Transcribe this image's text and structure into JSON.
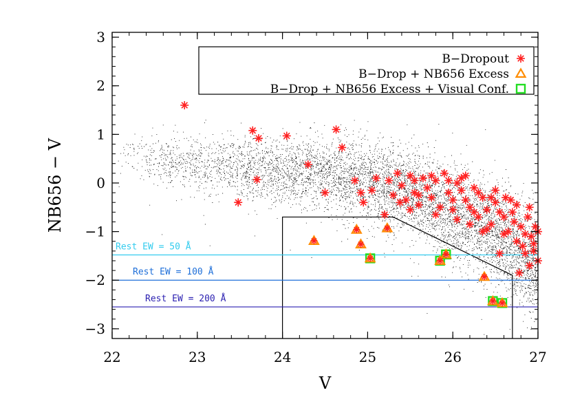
{
  "chart_data": {
    "type": "scatter",
    "xlabel": "V",
    "ylabel": "NB656 − V",
    "xlim": [
      22,
      27
    ],
    "ylim": [
      -3.2,
      3.1
    ],
    "x_ticks": [
      22,
      23,
      24,
      25,
      26,
      27
    ],
    "x_tick_labels": [
      "22",
      "23",
      "24",
      "25",
      "26",
      "27"
    ],
    "y_ticks": [
      -3,
      -2,
      -1,
      0,
      1,
      2,
      3
    ],
    "y_tick_labels": [
      "−3",
      "−2",
      "−1",
      "0",
      "1",
      "2",
      "3"
    ],
    "grid": false,
    "legend_position": "top-right",
    "legend": [
      {
        "label": "B−Dropout",
        "marker": "asterisk",
        "color": "#ff2020"
      },
      {
        "label": "B−Drop + NB656 Excess",
        "marker": "triangle",
        "color": "#ff8c00"
      },
      {
        "label": "B−Drop + NB656 Excess + Visual Conf.",
        "marker": "square",
        "color": "#22dd22"
      }
    ],
    "reference_lines": [
      {
        "label": "Rest EW = 50 Å",
        "y": -1.48,
        "color": "#33ccee"
      },
      {
        "label": "Rest EW = 100 Å",
        "y": -2.0,
        "color": "#1e6fd9"
      },
      {
        "label": "Rest EW = 200 Å",
        "y": -2.55,
        "color": "#2a1fb0"
      }
    ],
    "selection_region": [
      [
        24.0,
        -3.2
      ],
      [
        24.0,
        -0.7
      ],
      [
        25.3,
        -0.7
      ],
      [
        26.7,
        -1.9
      ],
      [
        26.7,
        -3.2
      ]
    ],
    "background_points": {
      "color": "#000000",
      "description_shown": false
    },
    "series": [
      {
        "name": "B−Dropout",
        "points": [
          [
            22.85,
            1.6
          ],
          [
            23.65,
            1.08
          ],
          [
            23.72,
            0.92
          ],
          [
            24.05,
            0.97
          ],
          [
            24.63,
            1.1
          ],
          [
            24.7,
            0.73
          ],
          [
            24.3,
            0.38
          ],
          [
            23.7,
            0.07
          ],
          [
            23.48,
            -0.4
          ],
          [
            24.5,
            -0.2
          ],
          [
            24.85,
            0.05
          ],
          [
            24.92,
            -0.2
          ],
          [
            24.95,
            -0.4
          ],
          [
            25.05,
            -0.15
          ],
          [
            25.1,
            0.1
          ],
          [
            25.2,
            -0.65
          ],
          [
            25.25,
            0.05
          ],
          [
            25.3,
            -0.25
          ],
          [
            25.35,
            0.2
          ],
          [
            25.4,
            -0.05
          ],
          [
            25.45,
            -0.35
          ],
          [
            25.5,
            0.15
          ],
          [
            25.55,
            -0.2
          ],
          [
            25.6,
            -0.45
          ],
          [
            25.65,
            0.1
          ],
          [
            25.7,
            -0.1
          ],
          [
            25.75,
            -0.3
          ],
          [
            25.8,
            0.05
          ],
          [
            25.85,
            -0.5
          ],
          [
            25.9,
            0.2
          ],
          [
            25.95,
            -0.2
          ],
          [
            26.0,
            -0.35
          ],
          [
            26.05,
            0.0
          ],
          [
            26.1,
            -0.15
          ],
          [
            26.15,
            0.15
          ],
          [
            26.2,
            -0.5
          ],
          [
            26.25,
            -0.1
          ],
          [
            26.3,
            -0.7
          ],
          [
            26.35,
            -0.3
          ],
          [
            26.4,
            -0.55
          ],
          [
            26.45,
            -0.85
          ],
          [
            26.5,
            -0.4
          ],
          [
            26.55,
            -1.45
          ],
          [
            26.6,
            -0.7
          ],
          [
            26.65,
            -1.0
          ],
          [
            26.7,
            -0.6
          ],
          [
            26.75,
            -1.2
          ],
          [
            26.8,
            -0.9
          ],
          [
            26.85,
            -1.45
          ],
          [
            26.88,
            -0.7
          ],
          [
            26.9,
            -1.7
          ],
          [
            26.92,
            -1.1
          ],
          [
            26.95,
            -1.4
          ],
          [
            26.97,
            -0.9
          ],
          [
            27.0,
            -1.6
          ],
          [
            26.78,
            -1.85
          ],
          [
            26.82,
            -1.3
          ],
          [
            26.6,
            -1.05
          ],
          [
            26.4,
            -0.95
          ],
          [
            26.2,
            -0.85
          ],
          [
            26.0,
            -0.55
          ],
          [
            25.8,
            -0.65
          ],
          [
            25.6,
            -0.25
          ],
          [
            25.5,
            -0.55
          ],
          [
            26.1,
            0.1
          ],
          [
            26.3,
            -0.2
          ],
          [
            26.5,
            -0.15
          ],
          [
            26.68,
            -0.35
          ],
          [
            26.72,
            -0.8
          ],
          [
            26.9,
            -0.5
          ],
          [
            26.95,
            -1.25
          ],
          [
            27.0,
            -1.0
          ],
          [
            26.55,
            -0.6
          ],
          [
            26.35,
            -1.0
          ],
          [
            26.15,
            -0.35
          ],
          [
            25.95,
            0.05
          ],
          [
            25.75,
            0.15
          ],
          [
            25.55,
            0.05
          ],
          [
            25.38,
            -0.4
          ],
          [
            26.62,
            -0.3
          ],
          [
            26.85,
            -1.05
          ],
          [
            26.75,
            -0.45
          ],
          [
            26.45,
            -0.3
          ],
          [
            26.25,
            -0.6
          ],
          [
            26.05,
            -0.75
          ]
        ]
      },
      {
        "name": "B−Drop + NB656 Excess",
        "points": [
          [
            24.37,
            -1.19
          ],
          [
            24.87,
            -0.96
          ],
          [
            24.92,
            -1.26
          ],
          [
            25.23,
            -0.93
          ],
          [
            25.03,
            -1.55
          ],
          [
            25.85,
            -1.6
          ],
          [
            25.92,
            -1.47
          ],
          [
            26.37,
            -1.93
          ],
          [
            26.47,
            -2.43
          ],
          [
            26.58,
            -2.47
          ]
        ]
      },
      {
        "name": "B−Drop + NB656 Excess + Visual Conf.",
        "points": [
          [
            25.03,
            -1.55
          ],
          [
            25.85,
            -1.6
          ],
          [
            25.92,
            -1.47
          ],
          [
            26.47,
            -2.43
          ],
          [
            26.58,
            -2.47
          ]
        ]
      }
    ]
  }
}
